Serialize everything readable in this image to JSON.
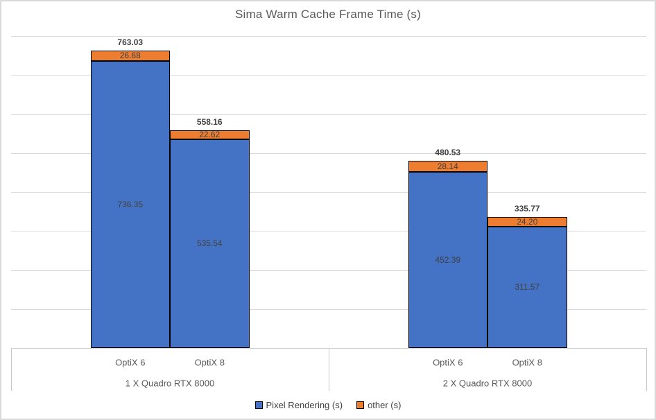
{
  "chart_data": {
    "type": "bar",
    "stacked": true,
    "title": "Sima Warm Cache Frame Time (s)",
    "groups": [
      {
        "label": "1 X Quadro RTX 8000",
        "categories": [
          "OptiX 6",
          "OptiX 8"
        ]
      },
      {
        "label": "2 X Quadro RTX 8000",
        "categories": [
          "OptiX 6",
          "OptiX 8"
        ]
      }
    ],
    "series": [
      {
        "name": "Pixel Rendering (s)",
        "color": "#4472C4",
        "values": [
          736.35,
          535.54,
          452.39,
          311.57
        ]
      },
      {
        "name": "other (s)",
        "color": "#ED7D31",
        "values": [
          26.68,
          22.62,
          28.14,
          24.2
        ]
      }
    ],
    "totals": [
      763.03,
      558.16,
      480.53,
      335.77
    ],
    "ylim": [
      0,
      800
    ],
    "gridline_step": 100,
    "grid": true,
    "y_tick_labels_visible": false,
    "label_decimals": 2,
    "legend_position": "bottom"
  },
  "colors": {
    "series_blue": "#4472C4",
    "series_orange": "#ED7D31",
    "bar_border": "#000000",
    "gridline": "#D9D9D9",
    "axis": "#C6C6C6",
    "title_text": "#595959",
    "label_text": "#404040",
    "chart_border": "#D9D9D9"
  }
}
